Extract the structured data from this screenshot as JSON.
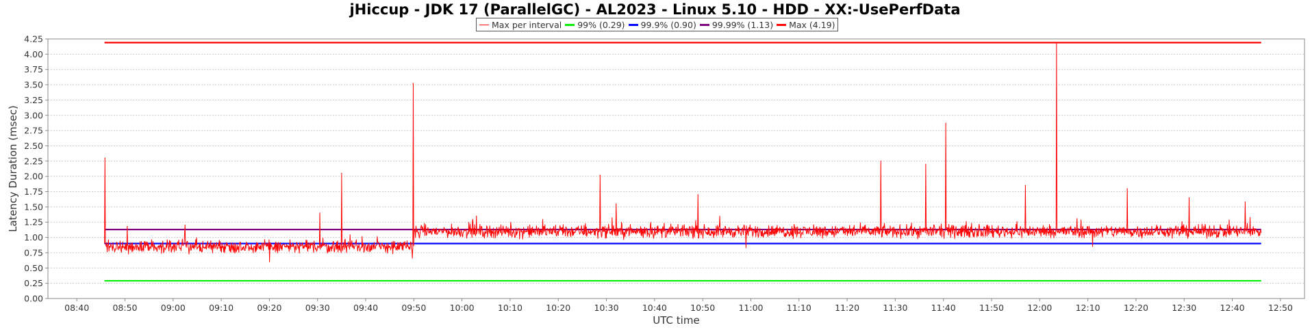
{
  "chart_data": {
    "type": "line",
    "title": "jHiccup - JDK 17 (ParallelGC) - AL2023 - Linux 5.10 - HDD - XX:-UsePerfData",
    "xlabel": "UTC time",
    "ylabel": "Latency Duration (msec)",
    "xlim": [
      "08:34",
      "12:55"
    ],
    "ylim": [
      0,
      4.25
    ],
    "x_ticks": [
      "08:40",
      "08:50",
      "09:00",
      "09:10",
      "09:20",
      "09:30",
      "09:40",
      "09:50",
      "10:00",
      "10:10",
      "10:20",
      "10:30",
      "10:40",
      "10:50",
      "11:00",
      "11:10",
      "11:20",
      "11:30",
      "11:40",
      "11:50",
      "12:00",
      "12:10",
      "12:20",
      "12:30",
      "12:40",
      "12:50"
    ],
    "y_ticks": [
      "0.00",
      "0.25",
      "0.50",
      "0.75",
      "1.00",
      "1.25",
      "1.50",
      "1.75",
      "2.00",
      "2.25",
      "2.50",
      "2.75",
      "3.00",
      "3.25",
      "3.50",
      "3.75",
      "4.00",
      "4.25"
    ],
    "grid": true,
    "legend_position": "top-center",
    "series": [
      {
        "name": "Max per interval",
        "color": "#ff0000",
        "x_range": [
          "08:45:45",
          "12:46:00"
        ],
        "typical_range": {
          "before_09:50": [
            0.7,
            1.0
          ],
          "after_09:50": [
            0.95,
            1.25
          ]
        },
        "peaks": [
          {
            "x": "08:45:50",
            "y": 2.3
          },
          {
            "x": "08:50:30",
            "y": 1.18
          },
          {
            "x": "09:02:30",
            "y": 1.2
          },
          {
            "x": "09:30:30",
            "y": 1.4
          },
          {
            "x": "09:35:00",
            "y": 2.05
          },
          {
            "x": "09:49:50",
            "y": 3.52
          },
          {
            "x": "10:03:00",
            "y": 1.35
          },
          {
            "x": "10:28:40",
            "y": 2.02
          },
          {
            "x": "10:32:00",
            "y": 1.55
          },
          {
            "x": "10:49:00",
            "y": 1.7
          },
          {
            "x": "11:27:00",
            "y": 2.25
          },
          {
            "x": "11:36:20",
            "y": 2.2
          },
          {
            "x": "11:40:30",
            "y": 2.87
          },
          {
            "x": "11:57:00",
            "y": 1.85
          },
          {
            "x": "12:03:30",
            "y": 4.19
          },
          {
            "x": "12:18:10",
            "y": 1.8
          },
          {
            "x": "12:31:00",
            "y": 1.65
          },
          {
            "x": "12:42:40",
            "y": 1.58
          }
        ],
        "dips": [
          {
            "x": "09:20:00",
            "y": 0.6
          },
          {
            "x": "09:49:40",
            "y": 0.66
          },
          {
            "x": "10:59:00",
            "y": 0.83
          },
          {
            "x": "12:11:00",
            "y": 0.85
          }
        ]
      },
      {
        "name": "99% (0.29)",
        "color": "#00ee00",
        "values": [
          0.29,
          0.29
        ],
        "x": [
          "08:45:45",
          "12:46:00"
        ]
      },
      {
        "name": "99.9% (0.90)",
        "color": "#0000ff",
        "values": [
          0.9,
          0.9
        ],
        "x": [
          "08:45:45",
          "12:46:00"
        ]
      },
      {
        "name": "99.99% (1.13)",
        "color": "#800080",
        "values": [
          1.13,
          1.13
        ],
        "x": [
          "08:45:45",
          "12:46:00"
        ]
      },
      {
        "name": "Max (4.19)",
        "color": "#ff0000",
        "values": [
          4.19,
          4.19
        ],
        "x": [
          "08:45:45",
          "12:46:00"
        ]
      }
    ]
  }
}
